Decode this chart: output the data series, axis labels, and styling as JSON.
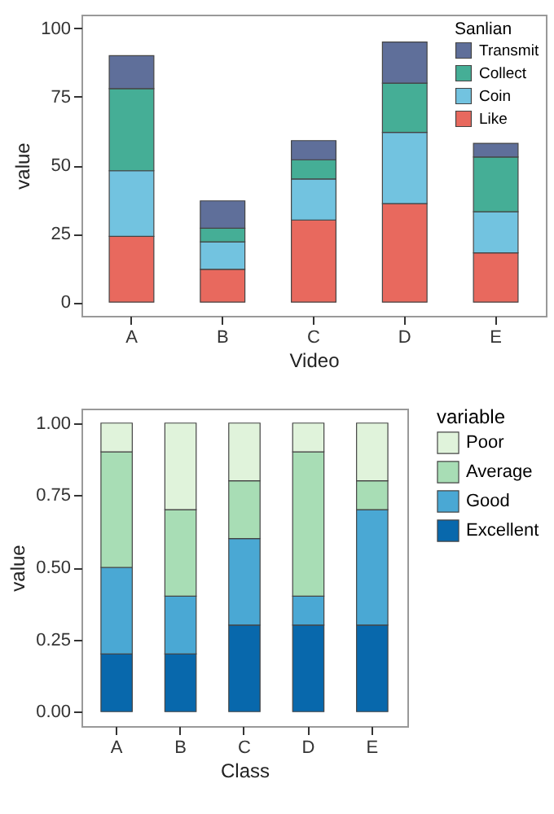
{
  "chart_data": [
    {
      "type": "bar",
      "stacked": true,
      "xlabel": "Video",
      "ylabel": "value",
      "legend_title": "Sanlian",
      "legend": "top right",
      "grid": false,
      "categories": [
        "A",
        "B",
        "C",
        "D",
        "E"
      ],
      "ylim": [
        -5,
        105
      ],
      "yticks": [
        0,
        25,
        50,
        75,
        100
      ],
      "series": [
        {
          "name": "Like",
          "color": "#e8695e",
          "values": [
            24,
            12,
            30,
            36,
            18
          ]
        },
        {
          "name": "Coin",
          "color": "#72c3e0",
          "values": [
            24,
            10,
            15,
            26,
            15
          ]
        },
        {
          "name": "Collect",
          "color": "#45ae96",
          "values": [
            30,
            5,
            7,
            18,
            20
          ]
        },
        {
          "name": "Transmit",
          "color": "#5f6f9a",
          "values": [
            12,
            10,
            7,
            15,
            5
          ]
        }
      ]
    },
    {
      "type": "bar",
      "stacked": true,
      "xlabel": "Class",
      "ylabel": "value",
      "legend_title": "variable",
      "legend": "right",
      "grid": false,
      "categories": [
        "A",
        "B",
        "C",
        "D",
        "E"
      ],
      "ylim": [
        -0.05,
        1.05
      ],
      "yticks": [
        {
          "value": 0,
          "label": "0.00"
        },
        {
          "value": 0.25,
          "label": "0.25"
        },
        {
          "value": 0.5,
          "label": "0.50"
        },
        {
          "value": 0.75,
          "label": "0.75"
        },
        {
          "value": 1,
          "label": "1.00"
        }
      ],
      "series": [
        {
          "name": "Excellent",
          "color": "#0868ac",
          "values": [
            0.2,
            0.2,
            0.3,
            0.3,
            0.3
          ]
        },
        {
          "name": "Good",
          "color": "#4aa8d4",
          "values": [
            0.3,
            0.2,
            0.3,
            0.1,
            0.4
          ]
        },
        {
          "name": "Average",
          "color": "#a8ddb5",
          "values": [
            0.4,
            0.3,
            0.2,
            0.5,
            0.1
          ]
        },
        {
          "name": "Poor",
          "color": "#e0f3db",
          "values": [
            0.1,
            0.3,
            0.2,
            0.1,
            0.2
          ]
        }
      ]
    }
  ]
}
